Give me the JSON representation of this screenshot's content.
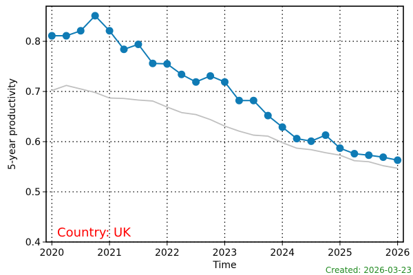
{
  "chart_data": {
    "type": "line",
    "xlabel": "Time",
    "ylabel": "5-year productivity",
    "xlim": [
      2019.9,
      2026.1
    ],
    "ylim": [
      0.4,
      0.87
    ],
    "x_ticks": [
      2020,
      2021,
      2022,
      2023,
      2024,
      2025,
      2026
    ],
    "y_ticks": [
      0.4,
      0.5,
      0.6,
      0.7,
      0.8
    ],
    "grid": true,
    "series": [
      {
        "color": "#0f7bb5",
        "markers": true,
        "x": [
          2020.0,
          2020.25,
          2020.5,
          2020.75,
          2021.0,
          2021.25,
          2021.5,
          2021.75,
          2022.0,
          2022.25,
          2022.5,
          2022.75,
          2023.0,
          2023.25,
          2023.5,
          2023.75,
          2024.0,
          2024.25,
          2024.5,
          2024.75,
          2025.0,
          2025.25,
          2025.5,
          2025.75,
          2026.0
        ],
        "y": [
          0.811,
          0.811,
          0.821,
          0.851,
          0.821,
          0.784,
          0.794,
          0.756,
          0.755,
          0.734,
          0.719,
          0.731,
          0.719,
          0.682,
          0.682,
          0.652,
          0.629,
          0.606,
          0.601,
          0.613,
          0.587,
          0.576,
          0.573,
          0.569,
          0.563
        ]
      },
      {
        "color": "#c0c0c0",
        "markers": false,
        "x": [
          2020.0,
          2020.25,
          2020.5,
          2020.75,
          2021.0,
          2021.25,
          2021.5,
          2021.75,
          2022.0,
          2022.25,
          2022.5,
          2022.75,
          2023.0,
          2023.25,
          2023.5,
          2023.75,
          2024.0,
          2024.25,
          2024.5,
          2024.75,
          2025.0,
          2025.25,
          2025.5,
          2025.75,
          2026.0
        ],
        "y": [
          0.702,
          0.712,
          0.705,
          0.698,
          0.687,
          0.686,
          0.683,
          0.681,
          0.669,
          0.658,
          0.654,
          0.644,
          0.631,
          0.621,
          0.613,
          0.611,
          0.598,
          0.587,
          0.584,
          0.578,
          0.573,
          0.562,
          0.56,
          0.552,
          0.547
        ]
      }
    ],
    "annotations": {
      "country": "Country: UK",
      "country_color": "#ff0000",
      "created": "Created: 2026-03-23",
      "created_color": "#228b22"
    }
  }
}
